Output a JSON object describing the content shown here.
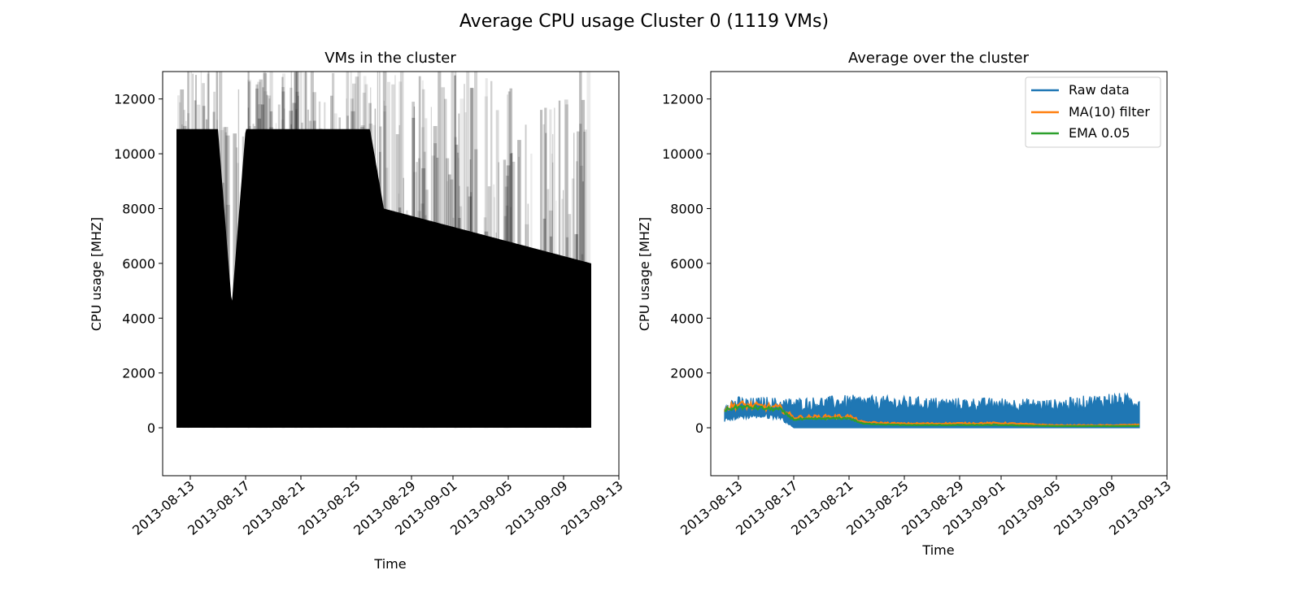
{
  "figure_title": "Average CPU usage Cluster 0 (1119 VMs)",
  "colors": {
    "vm_traces": "#000000",
    "raw": "#1f77b4",
    "ma": "#ff7f0e",
    "ema": "#2ca02c"
  },
  "chart_data": [
    {
      "type": "area",
      "title": "VMs in the cluster",
      "xlabel": "Time",
      "ylabel": "CPU usage [MHZ]",
      "xlim": [
        "2013-08-11",
        "2013-09-13"
      ],
      "ylim": [
        -1750,
        13000
      ],
      "x_ticks": [
        "2013-08-13",
        "2013-08-17",
        "2013-08-21",
        "2013-08-25",
        "2013-08-29",
        "2013-09-01",
        "2013-09-05",
        "2013-09-09",
        "2013-09-13"
      ],
      "y_ticks": [
        0,
        2000,
        4000,
        6000,
        8000,
        10000,
        12000
      ],
      "data_range": [
        "2013-08-12",
        "2013-09-11"
      ],
      "envelope": {
        "x": [
          "2013-08-12",
          "2013-08-15",
          "2013-08-16",
          "2013-08-17",
          "2013-08-20",
          "2013-08-22",
          "2013-08-26",
          "2013-08-27",
          "2013-09-11"
        ],
        "y": [
          10900,
          10900,
          4500,
          10900,
          10900,
          10900,
          10900,
          8000,
          6000
        ]
      },
      "grid": false
    },
    {
      "type": "line",
      "title": "Average over the cluster",
      "xlabel": "Time",
      "ylabel": "CPU usage [MHZ]",
      "xlim": [
        "2013-08-11",
        "2013-09-13"
      ],
      "ylim": [
        -1750,
        13000
      ],
      "x_ticks": [
        "2013-08-13",
        "2013-08-17",
        "2013-08-21",
        "2013-08-25",
        "2013-08-29",
        "2013-09-01",
        "2013-09-05",
        "2013-09-09",
        "2013-09-13"
      ],
      "y_ticks": [
        0,
        2000,
        4000,
        6000,
        8000,
        10000,
        12000
      ],
      "legend_position": "top-right",
      "grid": false,
      "series": [
        {
          "name": "Raw data",
          "x": [
            "2013-08-12",
            "2013-08-13",
            "2013-08-14",
            "2013-08-15",
            "2013-08-16",
            "2013-08-17",
            "2013-08-21",
            "2013-08-25",
            "2013-08-29",
            "2013-09-01",
            "2013-09-05",
            "2013-09-09",
            "2013-09-11"
          ],
          "y_high": [
            1100,
            1150,
            1100,
            1150,
            1100,
            1100,
            1200,
            1150,
            1100,
            1100,
            1050,
            1300,
            1200
          ],
          "y_low": [
            350,
            500,
            550,
            550,
            500,
            0,
            0,
            0,
            0,
            0,
            0,
            0,
            0
          ]
        },
        {
          "name": "MA(10) filter",
          "x": [
            "2013-08-12",
            "2013-08-13",
            "2013-08-14",
            "2013-08-15",
            "2013-08-16",
            "2013-08-17",
            "2013-08-19",
            "2013-08-21",
            "2013-08-22",
            "2013-08-25",
            "2013-08-29",
            "2013-09-01",
            "2013-09-05",
            "2013-09-09",
            "2013-09-11"
          ],
          "y": [
            700,
            850,
            800,
            760,
            720,
            380,
            400,
            420,
            200,
            150,
            160,
            170,
            90,
            90,
            110
          ]
        },
        {
          "name": "EMA 0.05",
          "x": [
            "2013-08-12",
            "2013-08-13",
            "2013-08-14",
            "2013-08-15",
            "2013-08-16",
            "2013-08-17",
            "2013-08-19",
            "2013-08-21",
            "2013-08-22",
            "2013-08-25",
            "2013-08-29",
            "2013-09-01",
            "2013-09-05",
            "2013-09-09",
            "2013-09-11"
          ],
          "y": [
            650,
            760,
            740,
            700,
            670,
            300,
            330,
            350,
            150,
            100,
            100,
            100,
            60,
            60,
            70
          ]
        }
      ]
    }
  ]
}
